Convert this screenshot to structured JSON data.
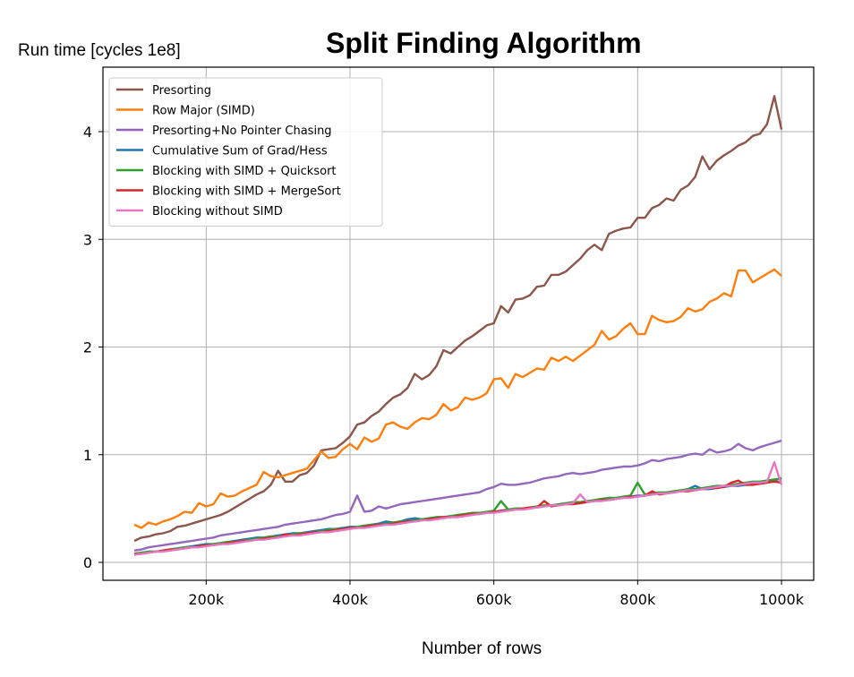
{
  "chart_data": {
    "type": "line",
    "title": "Split Finding Algorithm",
    "ylabel": "Run time [cycles 1e8]",
    "xlabel": "Number of rows",
    "xlim": [
      100000,
      1000000
    ],
    "ylim": [
      0,
      4.4
    ],
    "xticks": [
      200000,
      400000,
      600000,
      800000,
      1000000
    ],
    "xtick_labels": [
      "200k",
      "400k",
      "600k",
      "800k",
      "1000k"
    ],
    "yticks": [
      0,
      1,
      2,
      3,
      4
    ],
    "ytick_labels": [
      "0",
      "1",
      "2",
      "3",
      "4"
    ],
    "grid": true,
    "legend_position": "top-left",
    "x_start": 100000,
    "x_step": 10000,
    "series": [
      {
        "name": "Presorting",
        "color": "#8c564b",
        "values": [
          0.2,
          0.23,
          0.24,
          0.26,
          0.27,
          0.29,
          0.33,
          0.34,
          0.36,
          0.38,
          0.4,
          0.42,
          0.44,
          0.47,
          0.51,
          0.55,
          0.59,
          0.63,
          0.66,
          0.72,
          0.85,
          0.75,
          0.75,
          0.81,
          0.83,
          0.9,
          1.04,
          1.05,
          1.06,
          1.11,
          1.17,
          1.28,
          1.3,
          1.36,
          1.4,
          1.47,
          1.53,
          1.56,
          1.62,
          1.75,
          1.7,
          1.74,
          1.82,
          1.97,
          1.94,
          2.0,
          2.06,
          2.1,
          2.15,
          2.2,
          2.22,
          2.38,
          2.32,
          2.44,
          2.45,
          2.48,
          2.56,
          2.57,
          2.67,
          2.67,
          2.7,
          2.76,
          2.82,
          2.9,
          2.95,
          2.9,
          3.05,
          3.08,
          3.1,
          3.11,
          3.2,
          3.2,
          3.29,
          3.32,
          3.38,
          3.36,
          3.46,
          3.5,
          3.58,
          3.77,
          3.65,
          3.73,
          3.78,
          3.82,
          3.87,
          3.9,
          3.96,
          3.98,
          4.07,
          4.33,
          4.02
        ]
      },
      {
        "name": "Row Major (SIMD)",
        "color": "#ff7f0e",
        "values": [
          0.35,
          0.32,
          0.37,
          0.35,
          0.38,
          0.4,
          0.43,
          0.47,
          0.46,
          0.55,
          0.52,
          0.54,
          0.64,
          0.61,
          0.62,
          0.66,
          0.69,
          0.72,
          0.84,
          0.8,
          0.79,
          0.81,
          0.83,
          0.85,
          0.87,
          0.95,
          1.03,
          0.97,
          0.98,
          1.05,
          1.1,
          1.05,
          1.16,
          1.12,
          1.15,
          1.28,
          1.3,
          1.26,
          1.24,
          1.3,
          1.34,
          1.33,
          1.37,
          1.47,
          1.41,
          1.44,
          1.53,
          1.51,
          1.53,
          1.57,
          1.7,
          1.71,
          1.62,
          1.75,
          1.72,
          1.76,
          1.8,
          1.79,
          1.9,
          1.87,
          1.91,
          1.87,
          1.92,
          1.97,
          2.02,
          2.15,
          2.07,
          2.1,
          2.17,
          2.22,
          2.12,
          2.12,
          2.29,
          2.25,
          2.23,
          2.24,
          2.28,
          2.36,
          2.33,
          2.35,
          2.42,
          2.45,
          2.5,
          2.47,
          2.71,
          2.71,
          2.6,
          2.64,
          2.68,
          2.72,
          2.66
        ]
      },
      {
        "name": "Presorting+No Pointer Chasing",
        "color": "#9467bd",
        "values": [
          0.11,
          0.12,
          0.14,
          0.15,
          0.16,
          0.17,
          0.18,
          0.19,
          0.2,
          0.21,
          0.22,
          0.23,
          0.25,
          0.26,
          0.27,
          0.28,
          0.29,
          0.3,
          0.31,
          0.32,
          0.33,
          0.35,
          0.36,
          0.37,
          0.38,
          0.39,
          0.4,
          0.42,
          0.44,
          0.45,
          0.47,
          0.62,
          0.47,
          0.48,
          0.52,
          0.5,
          0.52,
          0.54,
          0.55,
          0.56,
          0.57,
          0.58,
          0.59,
          0.6,
          0.61,
          0.62,
          0.63,
          0.64,
          0.65,
          0.68,
          0.7,
          0.73,
          0.72,
          0.72,
          0.73,
          0.74,
          0.76,
          0.78,
          0.79,
          0.8,
          0.82,
          0.83,
          0.82,
          0.83,
          0.84,
          0.86,
          0.87,
          0.88,
          0.89,
          0.89,
          0.9,
          0.92,
          0.95,
          0.94,
          0.96,
          0.97,
          0.98,
          1.0,
          1.01,
          1.0,
          1.05,
          1.02,
          1.03,
          1.05,
          1.1,
          1.06,
          1.04,
          1.07,
          1.09,
          1.11,
          1.13
        ]
      },
      {
        "name": "Cumulative Sum of Grad/Hess",
        "color": "#1f77b4",
        "values": [
          0.08,
          0.09,
          0.1,
          0.1,
          0.11,
          0.12,
          0.13,
          0.14,
          0.15,
          0.16,
          0.17,
          0.17,
          0.18,
          0.19,
          0.2,
          0.21,
          0.22,
          0.23,
          0.23,
          0.24,
          0.25,
          0.26,
          0.27,
          0.27,
          0.28,
          0.29,
          0.3,
          0.31,
          0.31,
          0.32,
          0.33,
          0.33,
          0.34,
          0.35,
          0.36,
          0.38,
          0.37,
          0.38,
          0.4,
          0.41,
          0.4,
          0.41,
          0.42,
          0.42,
          0.43,
          0.44,
          0.44,
          0.45,
          0.45,
          0.46,
          0.47,
          0.48,
          0.49,
          0.5,
          0.5,
          0.51,
          0.51,
          0.52,
          0.53,
          0.53,
          0.54,
          0.55,
          0.56,
          0.56,
          0.57,
          0.58,
          0.58,
          0.59,
          0.6,
          0.61,
          0.62,
          0.62,
          0.63,
          0.64,
          0.64,
          0.65,
          0.66,
          0.68,
          0.71,
          0.68,
          0.68,
          0.69,
          0.7,
          0.71,
          0.71,
          0.72,
          0.73,
          0.73,
          0.74,
          0.76,
          0.78
        ]
      },
      {
        "name": "Blocking with SIMD + Quicksort",
        "color": "#2ca02c",
        "values": [
          0.08,
          0.09,
          0.1,
          0.1,
          0.11,
          0.12,
          0.13,
          0.14,
          0.14,
          0.15,
          0.16,
          0.17,
          0.18,
          0.19,
          0.19,
          0.2,
          0.21,
          0.22,
          0.23,
          0.24,
          0.24,
          0.25,
          0.26,
          0.27,
          0.27,
          0.28,
          0.29,
          0.3,
          0.31,
          0.31,
          0.32,
          0.33,
          0.34,
          0.35,
          0.35,
          0.36,
          0.37,
          0.38,
          0.38,
          0.39,
          0.4,
          0.41,
          0.42,
          0.42,
          0.43,
          0.44,
          0.45,
          0.46,
          0.46,
          0.47,
          0.48,
          0.57,
          0.49,
          0.5,
          0.5,
          0.51,
          0.52,
          0.53,
          0.53,
          0.54,
          0.55,
          0.56,
          0.56,
          0.57,
          0.58,
          0.59,
          0.6,
          0.6,
          0.61,
          0.62,
          0.74,
          0.63,
          0.64,
          0.65,
          0.65,
          0.66,
          0.67,
          0.68,
          0.68,
          0.69,
          0.7,
          0.71,
          0.71,
          0.72,
          0.73,
          0.74,
          0.75,
          0.75,
          0.76,
          0.77,
          0.78
        ]
      },
      {
        "name": "Blocking with SIMD + MergeSort",
        "color": "#d62728",
        "values": [
          0.08,
          0.08,
          0.09,
          0.1,
          0.11,
          0.12,
          0.12,
          0.13,
          0.14,
          0.15,
          0.16,
          0.16,
          0.17,
          0.18,
          0.19,
          0.2,
          0.2,
          0.21,
          0.22,
          0.23,
          0.23,
          0.26,
          0.25,
          0.26,
          0.27,
          0.28,
          0.28,
          0.29,
          0.3,
          0.31,
          0.32,
          0.32,
          0.33,
          0.34,
          0.35,
          0.35,
          0.36,
          0.37,
          0.38,
          0.38,
          0.39,
          0.4,
          0.41,
          0.42,
          0.42,
          0.43,
          0.44,
          0.45,
          0.45,
          0.46,
          0.47,
          0.48,
          0.48,
          0.49,
          0.5,
          0.51,
          0.51,
          0.57,
          0.52,
          0.53,
          0.54,
          0.54,
          0.55,
          0.56,
          0.57,
          0.58,
          0.58,
          0.59,
          0.6,
          0.61,
          0.61,
          0.62,
          0.66,
          0.63,
          0.64,
          0.65,
          0.66,
          0.66,
          0.67,
          0.68,
          0.69,
          0.69,
          0.7,
          0.74,
          0.76,
          0.72,
          0.72,
          0.73,
          0.74,
          0.75,
          0.74
        ]
      },
      {
        "name": "Blocking without SIMD",
        "color": "#e377c2",
        "values": [
          0.07,
          0.08,
          0.09,
          0.1,
          0.1,
          0.11,
          0.12,
          0.13,
          0.14,
          0.14,
          0.15,
          0.16,
          0.17,
          0.17,
          0.18,
          0.19,
          0.2,
          0.21,
          0.21,
          0.22,
          0.23,
          0.24,
          0.25,
          0.25,
          0.26,
          0.27,
          0.28,
          0.28,
          0.29,
          0.3,
          0.31,
          0.32,
          0.32,
          0.33,
          0.34,
          0.35,
          0.35,
          0.36,
          0.37,
          0.38,
          0.39,
          0.39,
          0.4,
          0.41,
          0.42,
          0.42,
          0.43,
          0.44,
          0.45,
          0.46,
          0.46,
          0.47,
          0.48,
          0.49,
          0.49,
          0.5,
          0.51,
          0.52,
          0.53,
          0.53,
          0.54,
          0.55,
          0.63,
          0.56,
          0.57,
          0.57,
          0.58,
          0.59,
          0.6,
          0.6,
          0.61,
          0.62,
          0.63,
          0.64,
          0.64,
          0.65,
          0.66,
          0.67,
          0.67,
          0.68,
          0.69,
          0.7,
          0.71,
          0.71,
          0.72,
          0.73,
          0.74,
          0.74,
          0.75,
          0.93,
          0.72
        ]
      }
    ]
  }
}
